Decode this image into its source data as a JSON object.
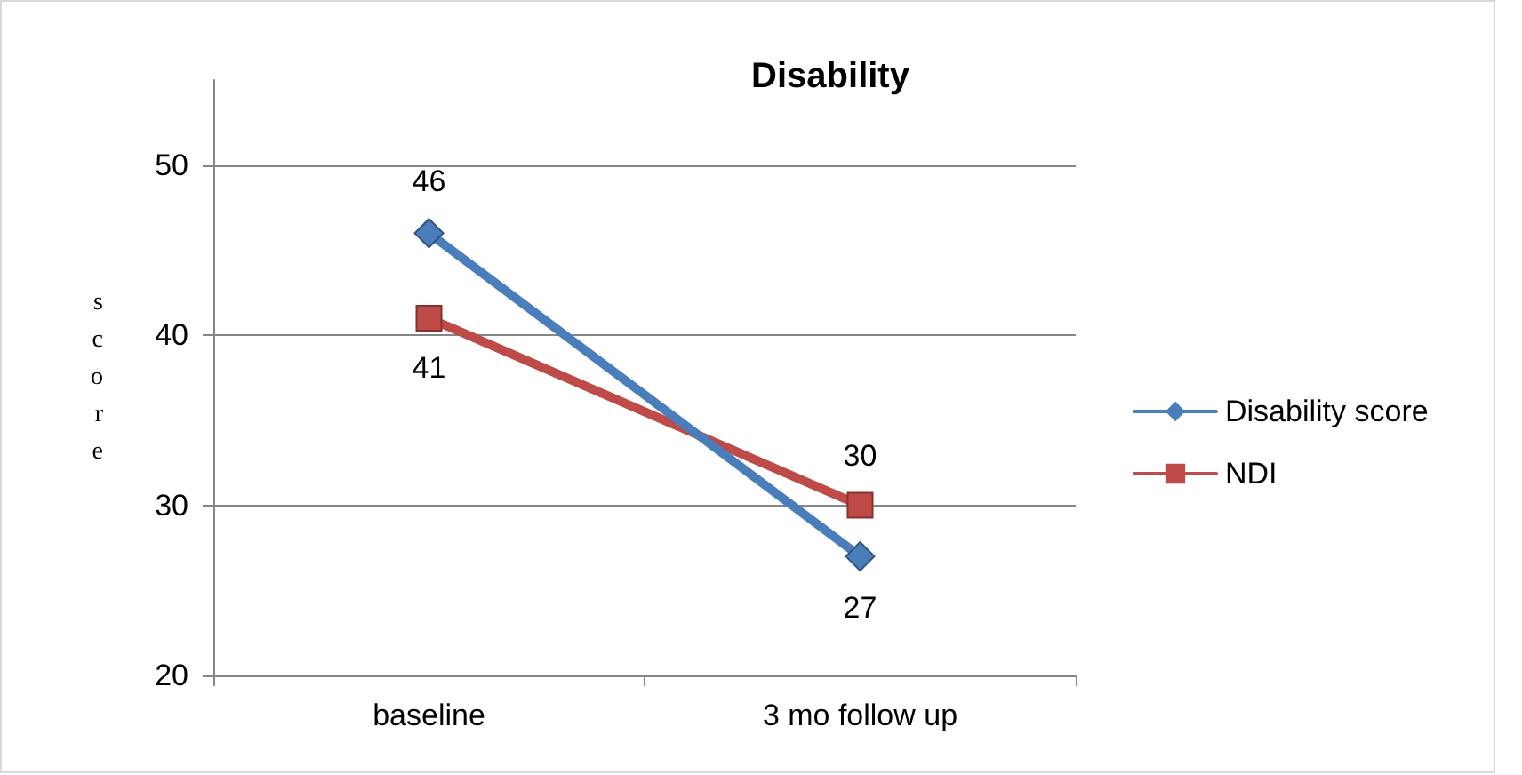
{
  "chart_data": {
    "type": "line",
    "title": "Disability",
    "ylabel": "score",
    "categories": [
      "baseline",
      "3 mo follow up"
    ],
    "series": [
      {
        "name": "Disability score",
        "color": "#4a7ebb",
        "marker": "diamond",
        "values": [
          46,
          27
        ]
      },
      {
        "name": "NDI",
        "color": "#be4b48",
        "marker": "square",
        "values": [
          41,
          30
        ]
      }
    ],
    "ylim": [
      20,
      55
    ],
    "yticks": [
      20,
      30,
      40,
      50
    ],
    "grid": "y",
    "legend": "right",
    "data_labels": true
  }
}
